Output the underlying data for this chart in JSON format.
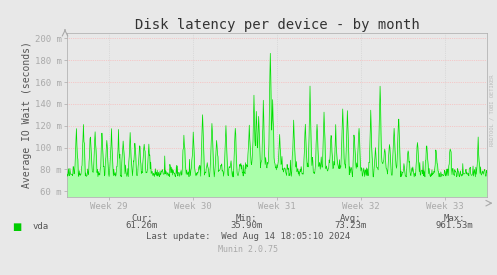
{
  "title": "Disk latency per device - by month",
  "ylabel": "Average IO Wait (seconds)",
  "bg_color": "#e8e8e8",
  "plot_bg_color": "#e8e8e8",
  "grid_color_h": "#ff9999",
  "grid_color_v": "#cccccc",
  "line_color": "#00dd00",
  "fill_color": "#aaffaa",
  "ytick_labels": [
    "60 m",
    "80 m",
    "100 m",
    "120 m",
    "140 m",
    "160 m",
    "180 m",
    "200 m"
  ],
  "ytick_values": [
    0.06,
    0.08,
    0.1,
    0.12,
    0.14,
    0.16,
    0.18,
    0.2
  ],
  "ylim_min": 0.055,
  "ylim_max": 0.205,
  "xtick_labels": [
    "Week 29",
    "Week 30",
    "Week 31",
    "Week 32",
    "Week 33"
  ],
  "xtick_pos": [
    0.1,
    0.3,
    0.5,
    0.7,
    0.9
  ],
  "legend_label": "vda",
  "legend_color": "#00cc00",
  "cur_label": "Cur:",
  "cur_val": "61.26m",
  "min_label": "Min:",
  "min_val": "35.90m",
  "avg_label": "Avg:",
  "avg_val": "73.23m",
  "max_label": "Max:",
  "max_val": "961.53m",
  "last_update": "Last update:  Wed Aug 14 18:05:10 2024",
  "munin_label": "Munin 2.0.75",
  "rrdtool_label": "RRDTOOL / TOBI OETIKER",
  "title_fontsize": 10,
  "axis_label_fontsize": 7,
  "tick_fontsize": 6.5,
  "annotation_fontsize": 6.5
}
